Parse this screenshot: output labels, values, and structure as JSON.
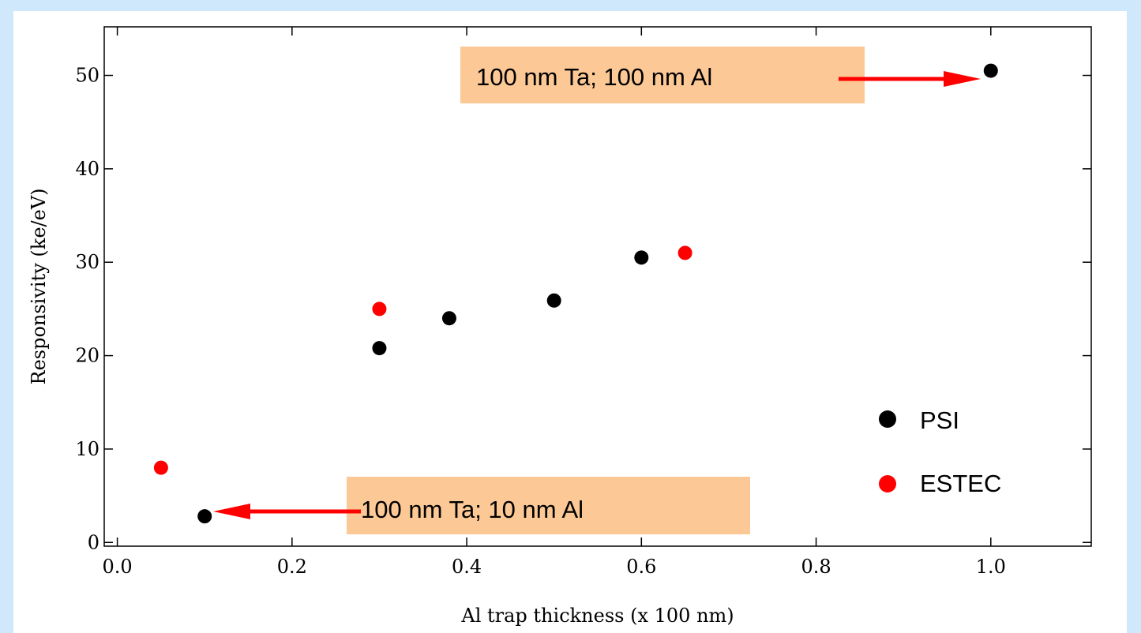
{
  "chart_data": {
    "type": "scatter",
    "xlabel": "Al trap thickness (x 100 nm)",
    "ylabel": "Responsivity (ke/eV)",
    "xlim": [
      -0.015,
      1.115
    ],
    "ylim": [
      -0.4,
      55.2
    ],
    "xticks": [
      {
        "value": 0.0,
        "label": "0.0"
      },
      {
        "value": 0.2,
        "label": "0.2"
      },
      {
        "value": 0.4,
        "label": "0.4"
      },
      {
        "value": 0.6,
        "label": "0.6"
      },
      {
        "value": 0.8,
        "label": "0.8"
      },
      {
        "value": 1.0,
        "label": "1.0"
      }
    ],
    "yticks": [
      {
        "value": 0,
        "label": "0"
      },
      {
        "value": 10,
        "label": "10"
      },
      {
        "value": 20,
        "label": "20"
      },
      {
        "value": 30,
        "label": "30"
      },
      {
        "value": 40,
        "label": "40"
      },
      {
        "value": 50,
        "label": "50"
      }
    ],
    "grid": false,
    "legend_position": "bottom-right",
    "series": [
      {
        "name": "PSI",
        "color": "#000000",
        "points": [
          {
            "x": 0.1,
            "y": 2.8
          },
          {
            "x": 0.3,
            "y": 20.8
          },
          {
            "x": 0.38,
            "y": 24.0
          },
          {
            "x": 0.5,
            "y": 25.9
          },
          {
            "x": 0.6,
            "y": 30.5
          },
          {
            "x": 1.0,
            "y": 50.5
          }
        ]
      },
      {
        "name": "ESTEC",
        "color": "#ff0000",
        "points": [
          {
            "x": 0.05,
            "y": 8.0
          },
          {
            "x": 0.3,
            "y": 25.0
          },
          {
            "x": 0.65,
            "y": 31.0
          }
        ]
      }
    ],
    "annotations": [
      {
        "text": "100 nm Ta; 100 nm Al",
        "box_color": "#fcc895",
        "arrow_color": "#ff0000",
        "target": {
          "x": 1.0,
          "y": 50.5
        }
      },
      {
        "text": "100 nm Ta; 10 nm Al",
        "box_color": "#fcc895",
        "arrow_color": "#ff0000",
        "target": {
          "x": 0.1,
          "y": 2.8
        }
      }
    ]
  }
}
